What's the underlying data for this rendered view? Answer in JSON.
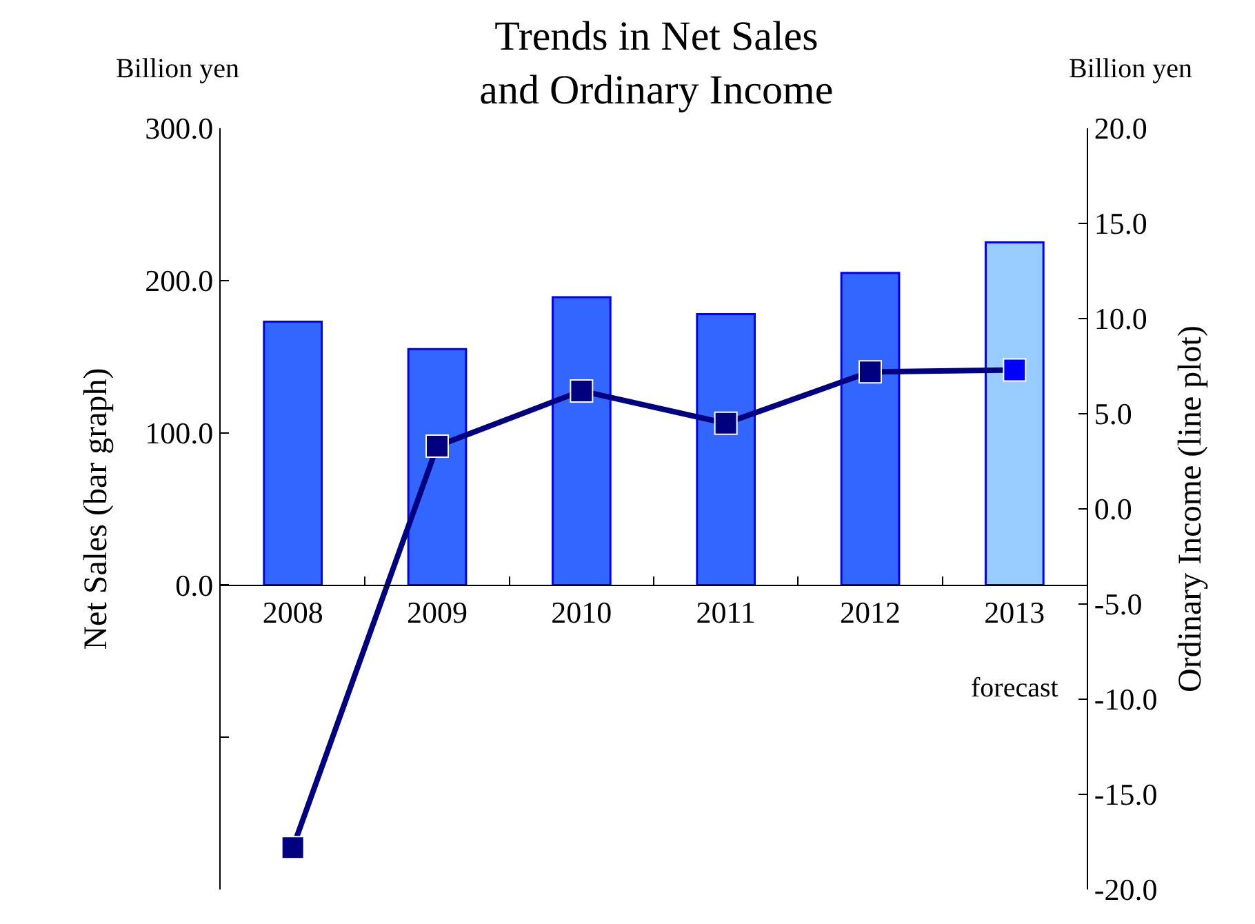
{
  "chart_data": {
    "type": "bar",
    "title": "Trends in Net Sales\nand Ordinary Income",
    "ylabel": "Net Sales (bar graph)",
    "y2label": "Ordinary Income (line plot)",
    "annotations": [
      "Billion yen",
      "Billion yen",
      "forecast"
    ],
    "categories": [
      "2008",
      "2009",
      "2010",
      "2011",
      "2012",
      "2013"
    ],
    "series": [
      {
        "colors": [
          "#3366ff",
          "#3366ff",
          "#3366ff",
          "#3366ff",
          "#3366ff",
          "#99ccff"
        ],
        "values": [
          173,
          155,
          189,
          178,
          205,
          225
        ]
      },
      {
        "type": "line",
        "axis": "y2",
        "color": "#000080",
        "colors": [
          "#000080",
          "#000080",
          "#000080",
          "#000080",
          "#000080",
          "#0000ff"
        ],
        "values": [
          -17.8,
          3.3,
          6.2,
          4.5,
          7.2,
          7.3
        ]
      }
    ],
    "ylim": [
      -200,
      300
    ],
    "yticks": [
      {
        "value": 300,
        "label": "300.0"
      },
      {
        "value": 200,
        "label": "200.0"
      },
      {
        "value": 100,
        "label": "100.0"
      },
      {
        "value": 0,
        "label": "0.0"
      },
      {
        "value": -100,
        "label": null
      }
    ],
    "y2lim": [
      -20,
      20
    ],
    "y2ticks": [
      {
        "value": 20,
        "label": "20.0"
      },
      {
        "value": 15,
        "label": "15.0"
      },
      {
        "value": 10,
        "label": "10.0"
      },
      {
        "value": 5,
        "label": "5.0"
      },
      {
        "value": 0,
        "label": "0.0"
      },
      {
        "value": -5,
        "label": "-5.0"
      },
      {
        "value": -10,
        "label": "-10.0"
      },
      {
        "value": -15,
        "label": "-15.0"
      },
      {
        "value": -20,
        "label": "-20.0"
      }
    ],
    "grid": false,
    "marker": "square",
    "line_style": "solid"
  }
}
